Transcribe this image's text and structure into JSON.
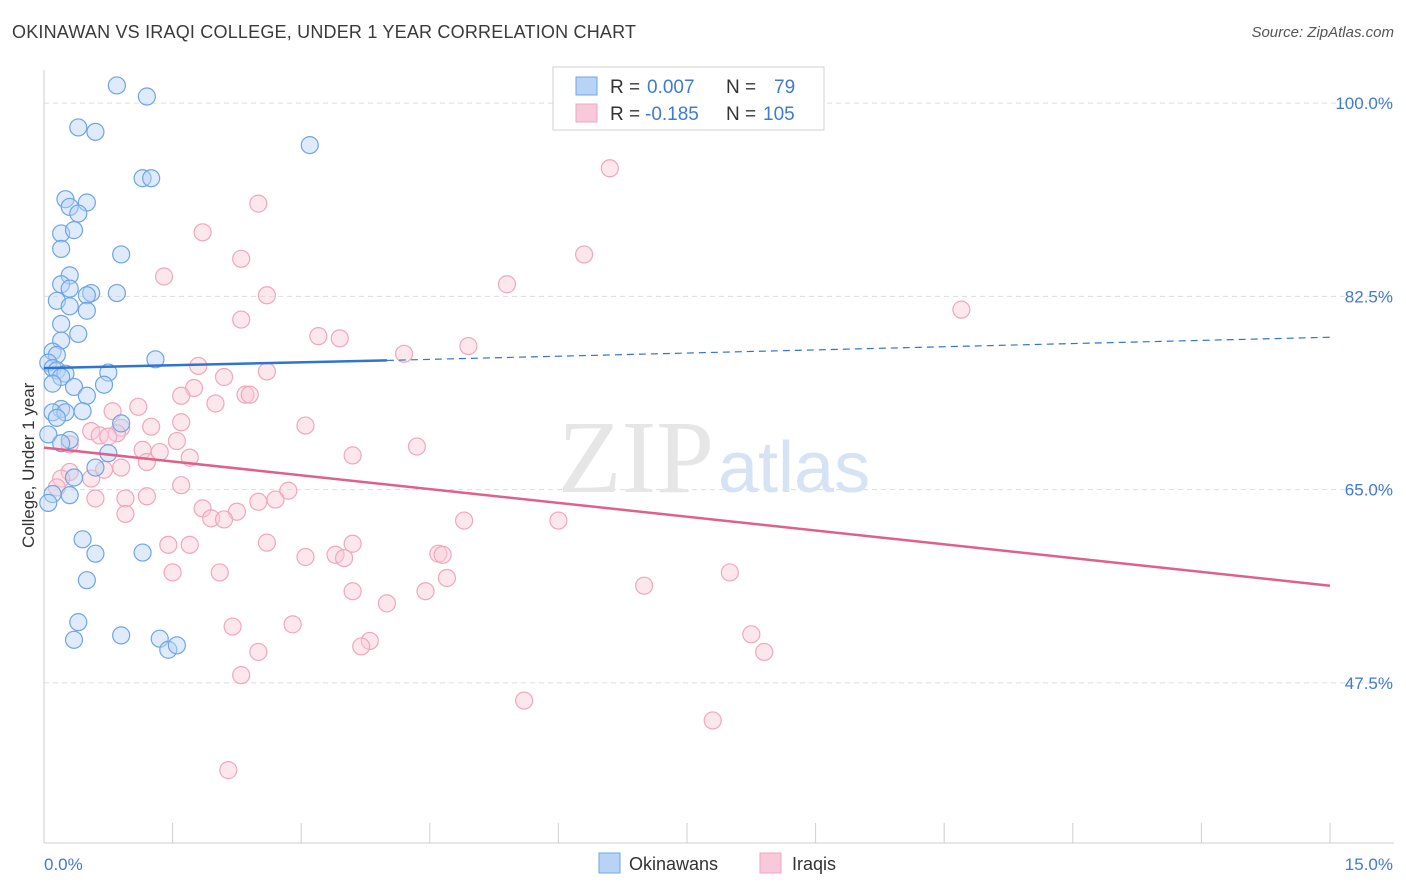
{
  "title": "OKINAWAN VS IRAQI COLLEGE, UNDER 1 YEAR CORRELATION CHART",
  "source": "Source: ZipAtlas.com",
  "colors": {
    "blue": "#6ea5e8",
    "blue_line": "#2f74d0",
    "pink": "#f2a6bd",
    "pink_line": "#e0608c",
    "tick": "#3f7ad6",
    "grid": "#dddddd"
  },
  "legend": {
    "r_label": "R =",
    "n_label": "N =",
    "rows": [
      {
        "series": "Okinawans",
        "r": "0.007",
        "n": "79"
      },
      {
        "series": "Iraqis",
        "r": "-0.185",
        "n": "105"
      }
    ]
  },
  "watermark": {
    "part1": "ZIP",
    "part2": "atlas"
  },
  "chart_data": {
    "type": "scatter",
    "xlabel": "",
    "ylabel": "College, Under 1 year",
    "xlim": [
      0,
      15
    ],
    "ylim": [
      33,
      103
    ],
    "x_tick_labels": [
      "0.0%",
      "15.0%"
    ],
    "y_ticks": [
      100.0,
      82.5,
      65.0,
      47.5
    ],
    "y_tick_labels": [
      "100.0%",
      "82.5%",
      "65.0%",
      "47.5%"
    ],
    "grid": true,
    "legend_position": "top-center",
    "series": [
      {
        "name": "Okinawans",
        "color": "#6ea5e8",
        "trend": {
          "x": [
            0,
            4.0
          ],
          "y": [
            76.0,
            76.7
          ],
          "extend_to": 15,
          "extend_y": 78.8
        },
        "points": [
          [
            0.85,
            101.6
          ],
          [
            1.2,
            100.6
          ],
          [
            0.4,
            97.8
          ],
          [
            0.6,
            97.4
          ],
          [
            3.1,
            96.2
          ],
          [
            1.15,
            93.2
          ],
          [
            1.25,
            93.2
          ],
          [
            0.25,
            91.3
          ],
          [
            0.5,
            91.0
          ],
          [
            0.3,
            90.6
          ],
          [
            0.4,
            90.0
          ],
          [
            0.2,
            88.2
          ],
          [
            0.35,
            88.5
          ],
          [
            0.2,
            86.8
          ],
          [
            0.9,
            86.3
          ],
          [
            0.3,
            84.4
          ],
          [
            0.2,
            83.6
          ],
          [
            0.3,
            83.2
          ],
          [
            0.55,
            82.8
          ],
          [
            0.85,
            82.8
          ],
          [
            0.15,
            82.1
          ],
          [
            0.3,
            81.6
          ],
          [
            0.5,
            82.6
          ],
          [
            0.5,
            81.2
          ],
          [
            0.2,
            80.0
          ],
          [
            0.4,
            79.1
          ],
          [
            0.2,
            78.5
          ],
          [
            0.1,
            77.5
          ],
          [
            0.15,
            77.2
          ],
          [
            0.05,
            76.5
          ],
          [
            0.1,
            76.0
          ],
          [
            0.15,
            75.8
          ],
          [
            0.25,
            75.5
          ],
          [
            0.2,
            75.2
          ],
          [
            1.3,
            76.8
          ],
          [
            0.75,
            75.6
          ],
          [
            0.7,
            74.5
          ],
          [
            0.1,
            74.6
          ],
          [
            0.35,
            74.3
          ],
          [
            0.5,
            73.5
          ],
          [
            0.2,
            72.3
          ],
          [
            0.1,
            72.0
          ],
          [
            0.25,
            72.0
          ],
          [
            0.45,
            72.1
          ],
          [
            0.15,
            71.5
          ],
          [
            0.9,
            71.0
          ],
          [
            0.3,
            69.5
          ],
          [
            0.05,
            70.0
          ],
          [
            0.2,
            69.2
          ],
          [
            0.75,
            68.3
          ],
          [
            0.6,
            67.0
          ],
          [
            0.35,
            66.1
          ],
          [
            0.1,
            64.6
          ],
          [
            0.3,
            64.5
          ],
          [
            0.05,
            63.8
          ],
          [
            0.45,
            60.5
          ],
          [
            0.6,
            59.2
          ],
          [
            1.15,
            59.3
          ],
          [
            0.5,
            56.8
          ],
          [
            0.4,
            53.0
          ],
          [
            0.35,
            51.4
          ],
          [
            0.9,
            51.8
          ],
          [
            1.35,
            51.5
          ],
          [
            1.45,
            50.5
          ],
          [
            1.55,
            50.9
          ]
        ]
      },
      {
        "name": "Iraqis",
        "color": "#f2a6bd",
        "trend": {
          "x": [
            0,
            15
          ],
          "y": [
            68.8,
            56.3
          ]
        },
        "points": [
          [
            6.6,
            94.1
          ],
          [
            2.5,
            90.9
          ],
          [
            1.85,
            88.3
          ],
          [
            6.3,
            86.3
          ],
          [
            2.3,
            85.9
          ],
          [
            1.4,
            84.3
          ],
          [
            5.4,
            83.6
          ],
          [
            2.6,
            82.6
          ],
          [
            10.7,
            81.3
          ],
          [
            2.3,
            80.4
          ],
          [
            3.2,
            78.9
          ],
          [
            3.45,
            78.7
          ],
          [
            4.95,
            78.0
          ],
          [
            4.2,
            77.3
          ],
          [
            1.8,
            76.2
          ],
          [
            2.6,
            75.7
          ],
          [
            2.1,
            75.2
          ],
          [
            1.75,
            74.2
          ],
          [
            2.35,
            73.6
          ],
          [
            2.4,
            73.6
          ],
          [
            1.6,
            73.5
          ],
          [
            2.0,
            72.8
          ],
          [
            1.1,
            72.5
          ],
          [
            0.8,
            72.1
          ],
          [
            1.6,
            71.1
          ],
          [
            3.05,
            70.8
          ],
          [
            1.25,
            70.7
          ],
          [
            0.9,
            70.6
          ],
          [
            0.55,
            70.3
          ],
          [
            0.85,
            70.1
          ],
          [
            0.65,
            69.9
          ],
          [
            0.75,
            69.8
          ],
          [
            1.55,
            69.4
          ],
          [
            0.3,
            69.1
          ],
          [
            4.35,
            68.9
          ],
          [
            1.15,
            68.6
          ],
          [
            1.35,
            68.4
          ],
          [
            3.6,
            68.1
          ],
          [
            1.7,
            67.9
          ],
          [
            1.2,
            67.5
          ],
          [
            0.9,
            67.0
          ],
          [
            0.7,
            66.8
          ],
          [
            0.3,
            66.6
          ],
          [
            0.55,
            66.0
          ],
          [
            0.2,
            66.0
          ],
          [
            0.15,
            65.2
          ],
          [
            1.6,
            65.4
          ],
          [
            2.85,
            64.9
          ],
          [
            1.2,
            64.4
          ],
          [
            0.95,
            64.2
          ],
          [
            2.5,
            63.9
          ],
          [
            2.7,
            64.1
          ],
          [
            0.6,
            64.2
          ],
          [
            1.85,
            63.3
          ],
          [
            2.25,
            63.0
          ],
          [
            1.95,
            62.4
          ],
          [
            2.1,
            62.3
          ],
          [
            0.95,
            62.8
          ],
          [
            4.9,
            62.2
          ],
          [
            6.0,
            62.2
          ],
          [
            1.45,
            60.0
          ],
          [
            1.7,
            60.0
          ],
          [
            2.6,
            60.2
          ],
          [
            3.6,
            60.1
          ],
          [
            4.6,
            59.2
          ],
          [
            4.65,
            59.1
          ],
          [
            3.05,
            58.9
          ],
          [
            3.4,
            59.1
          ],
          [
            3.5,
            58.8
          ],
          [
            2.05,
            57.5
          ],
          [
            1.5,
            57.5
          ],
          [
            8.0,
            57.5
          ],
          [
            4.7,
            57.0
          ],
          [
            7.0,
            56.3
          ],
          [
            3.6,
            55.8
          ],
          [
            4.45,
            55.8
          ],
          [
            4.0,
            54.7
          ],
          [
            2.9,
            52.8
          ],
          [
            2.2,
            52.6
          ],
          [
            8.25,
            51.9
          ],
          [
            3.8,
            51.3
          ],
          [
            3.7,
            50.8
          ],
          [
            2.5,
            50.3
          ],
          [
            8.4,
            50.3
          ],
          [
            2.3,
            48.2
          ],
          [
            5.6,
            45.9
          ],
          [
            7.8,
            44.1
          ],
          [
            2.15,
            39.6
          ]
        ]
      }
    ]
  },
  "bottom_legend": [
    "Okinawans",
    "Iraqis"
  ]
}
